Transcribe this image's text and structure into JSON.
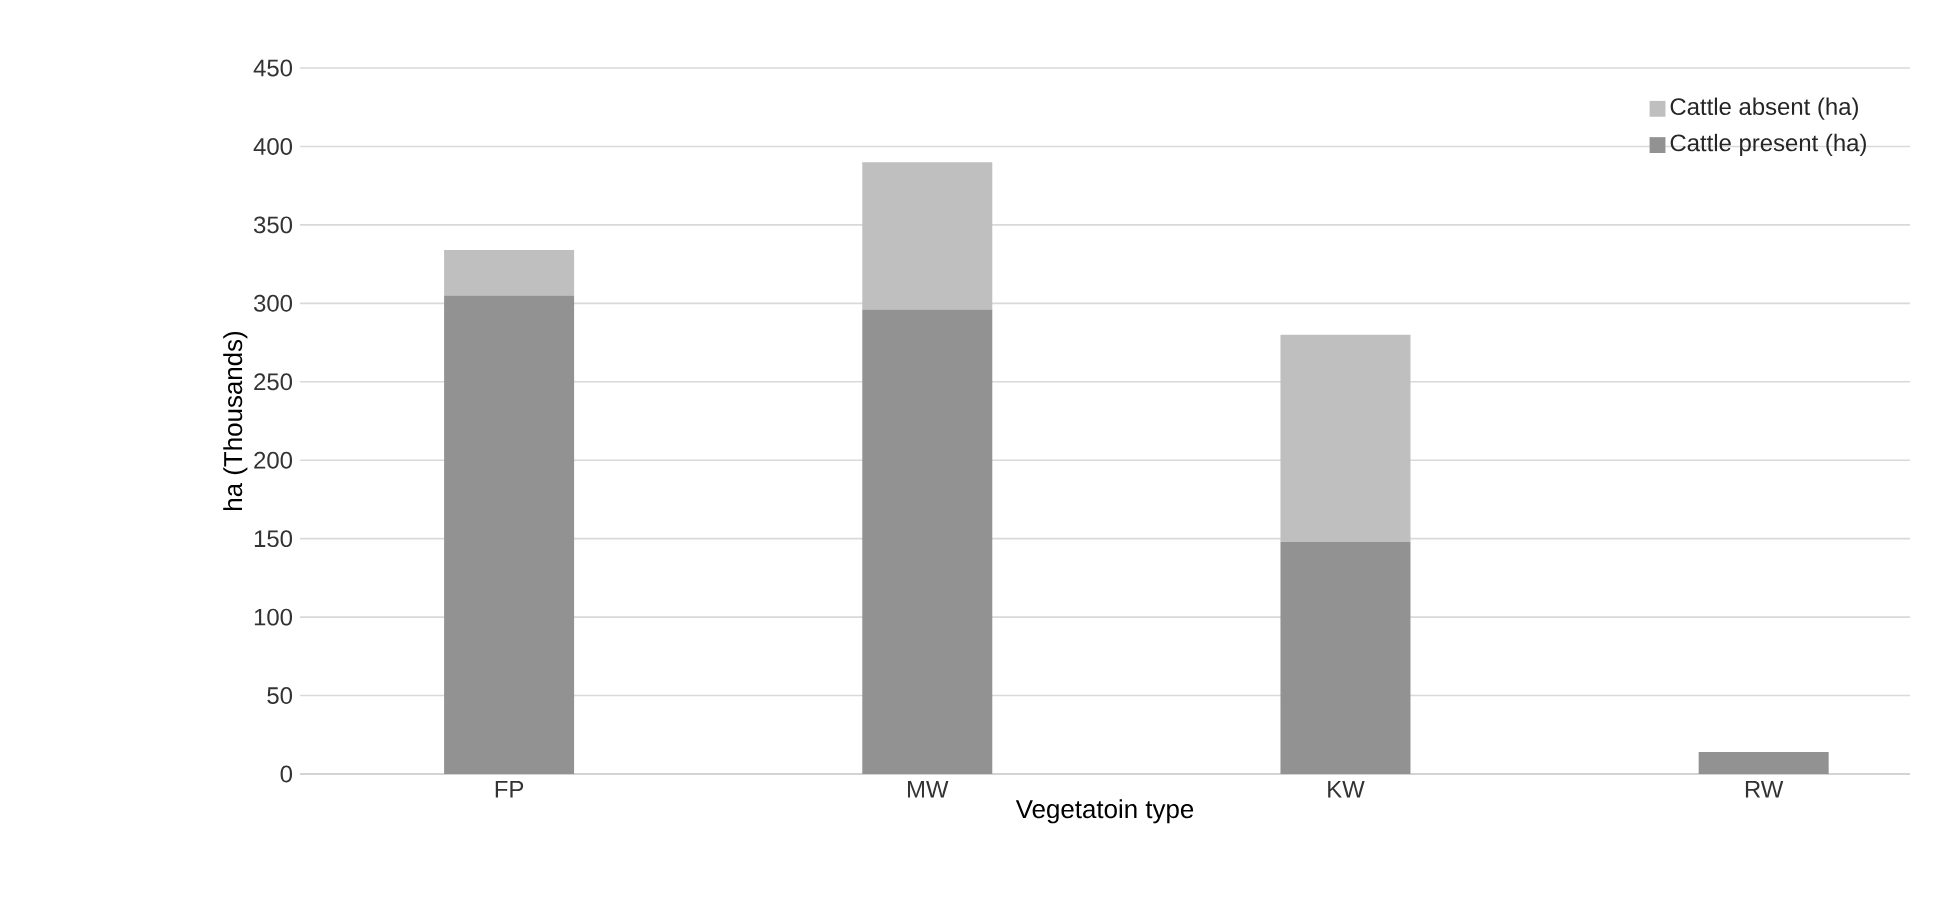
{
  "chart_data": {
    "type": "bar",
    "stacked": true,
    "xlabel": "Vegetatoin type",
    "ylabel": "ha (Thousands)",
    "categories": [
      "FP",
      "MW",
      "KW",
      "RW"
    ],
    "series": [
      {
        "name": "Cattle present (ha)",
        "color": "#929292",
        "values": [
          305,
          296,
          148,
          14
        ]
      },
      {
        "name": "Cattle absent (ha)",
        "color": "#bfbfbf",
        "values": [
          29,
          94,
          132,
          0
        ]
      }
    ],
    "ylim": [
      0,
      450
    ],
    "yticks": [
      0,
      50,
      100,
      150,
      200,
      250,
      300,
      350,
      400,
      450
    ],
    "grid": "y",
    "legend": "top right"
  }
}
